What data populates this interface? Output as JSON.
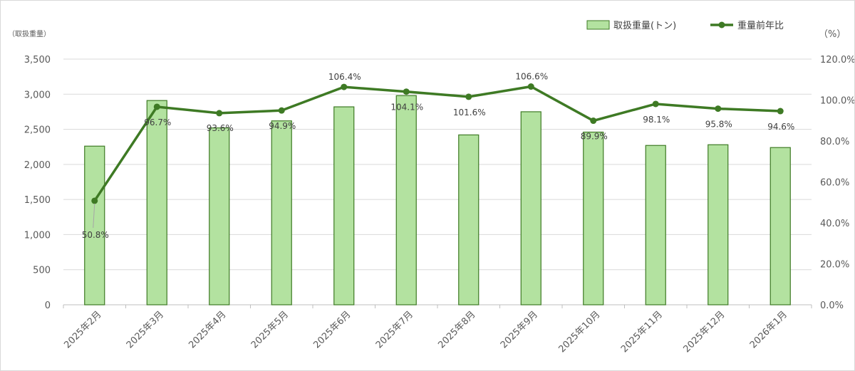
{
  "chart_data": {
    "type": "bar",
    "categories": [
      "2025年2月",
      "2025年3月",
      "2025年4月",
      "2025年5月",
      "2025年6月",
      "2025年7月",
      "2025年8月",
      "2025年9月",
      "2025年10月",
      "2025年11月",
      "2025年12月",
      "2026年1月"
    ],
    "series": [
      {
        "name": "取扱重量(トン)",
        "type": "bar",
        "axis": "left",
        "color": "#b3e2a0",
        "edge_color": "#3e7a24",
        "values": [
          2260,
          2910,
          2520,
          2620,
          2820,
          2980,
          2420,
          2750,
          2460,
          2270,
          2280,
          2240
        ]
      },
      {
        "name": "重量前年比",
        "type": "line",
        "axis": "right",
        "color": "#3e7a24",
        "values": [
          50.8,
          96.7,
          93.6,
          94.9,
          106.4,
          104.1,
          101.6,
          106.6,
          89.9,
          98.1,
          95.8,
          94.6
        ],
        "labels": [
          "50.8%",
          "96.7%",
          "93.6%",
          "94.9%",
          "106.4%",
          "104.1%",
          "101.6%",
          "106.6%",
          "89.9%",
          "98.1%",
          "95.8%",
          "94.6%"
        ]
      }
    ],
    "y_left": {
      "title": "（取扱重量）",
      "ylim": [
        0,
        3500
      ],
      "ticks": [
        0,
        500,
        1000,
        1500,
        2000,
        2500,
        3000,
        3500
      ],
      "tick_labels": [
        "0",
        "500",
        "1,000",
        "1,500",
        "2,000",
        "2,500",
        "3,000",
        "3,500"
      ]
    },
    "y_right": {
      "title": "（%）",
      "ylim": [
        0,
        120
      ],
      "ticks": [
        0,
        20,
        40,
        60,
        80,
        100,
        120
      ],
      "tick_labels": [
        "0.0%",
        "20.0%",
        "40.0%",
        "60.0%",
        "80.0%",
        "100.0%",
        "120.0%"
      ]
    },
    "grid": true,
    "legend_position": "top-right",
    "colors": {
      "gridline": "#d9d9d9",
      "axis": "#bfbfbf"
    }
  }
}
